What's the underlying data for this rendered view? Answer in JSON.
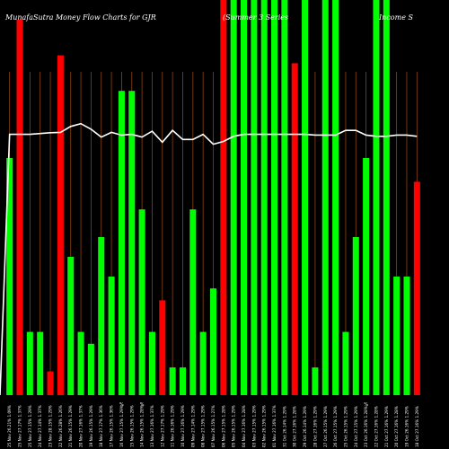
{
  "title_left": "MunafaSutra  Money Flow  Charts for GJR",
  "title_mid": "(Summer 3 Series",
  "title_right": "Income    S",
  "colors": {
    "background": "#000000",
    "up": "#00ff00",
    "down": "#ff0000",
    "grid": "#8b4513",
    "line": "#ffffff",
    "text": "#ffffff"
  },
  "chart_data": {
    "type": "bar",
    "ylim": [
      0,
      100
    ],
    "categories": [
      "25 Nov 26.21% 1.09%",
      "25 Nov 27.17% 1.37%",
      "25 Nov 27.15% 1.29%",
      "24 Nov 27.14% 1.37%",
      "23 Nov 28.15% 1.29%",
      "22 Nov 26.28% 1.26%",
      "21 Nov 26.15% 1.29%",
      "20 Nov 27.16% 1.37%",
      "19 Nov 26.15% 1.29%",
      "18 Nov 27.17% 1.36%",
      "17 Nov 26.15% 1.36%",
      "16 Nov 27.15% 1.29%",
      "15 Nov 26.15% 1.29%",
      "14 Nov 26.15% 1.28%",
      "13 Nov 27.16% 1.37%",
      "12 Nov 27.17% 1.29%",
      "11 Nov 26.16% 1.29%",
      "10 Nov 27.16% 1.29%",
      "09 Nov 27.14% 1.29%",
      "08 Nov 27.15% 1.29%",
      "07 Nov 26.15% 1.27%",
      "06 Nov 27.15% 1.28%",
      "05 Nov 26.15% 1.29%",
      "04 Nov 27.16% 1.28%",
      "03 Nov 27.15% 1.29%",
      "02 Nov 26.15% 1.29%",
      "01 Nov 27.16% 1.37%",
      "31 Oct 26.14% 1.29%",
      "30 Oct 27.16% 1.28%",
      "29 Oct 26.14% 1.29%",
      "28 Oct 27.16% 1.29%",
      "27 Oct 26.15% 1.29%",
      "26 Oct 27.15% 1.29%",
      "25 Oct 26.15% 1.29%",
      "24 Oct 27.15% 1.29%",
      "23 Oct 26.16% 1.28%",
      "22 Oct 27.16% 1.28%",
      "21 Oct 27.16% 1.29%",
      "20 Oct 27.16% 1.28%",
      "19 Oct 26.16% 1.29%",
      "18 Oct 27.16% 1.29%"
    ],
    "values": [
      60,
      95,
      16,
      16,
      6,
      86,
      35,
      16,
      13,
      40,
      30,
      77,
      77,
      47,
      16,
      24,
      7,
      7,
      47,
      16,
      27,
      100,
      100,
      100,
      100,
      100,
      100,
      100,
      84,
      100,
      7,
      100,
      100,
      16,
      40,
      60,
      100,
      100,
      30,
      30,
      54
    ],
    "direction": [
      "up",
      "down",
      "up",
      "up",
      "down",
      "down",
      "up",
      "up",
      "up",
      "up",
      "up",
      "up",
      "up",
      "up",
      "up",
      "down",
      "up",
      "up",
      "up",
      "up",
      "up",
      "down",
      "up",
      "up",
      "up",
      "up",
      "up",
      "up",
      "down",
      "up",
      "up",
      "up",
      "up",
      "up",
      "up",
      "up",
      "up",
      "up",
      "up",
      "up",
      "down"
    ],
    "line_values": [
      66,
      66,
      66,
      66.2,
      66.4,
      66.5,
      68,
      68.7,
      67.3,
      65.3,
      66.5,
      65.8,
      66,
      65.3,
      66.8,
      64,
      67,
      64.7,
      64.7,
      66,
      63.5,
      64.2,
      65.5,
      66,
      66,
      66,
      66,
      66,
      66,
      66,
      65.8,
      65.8,
      65.8,
      67,
      67,
      65.8,
      65.5,
      65.5,
      65.8,
      65.8,
      65.5
    ],
    "markers": [
      {
        "index": 11,
        "text": "%"
      },
      {
        "index": 13,
        "text": "%"
      },
      {
        "index": 35,
        "text": "%"
      }
    ]
  }
}
